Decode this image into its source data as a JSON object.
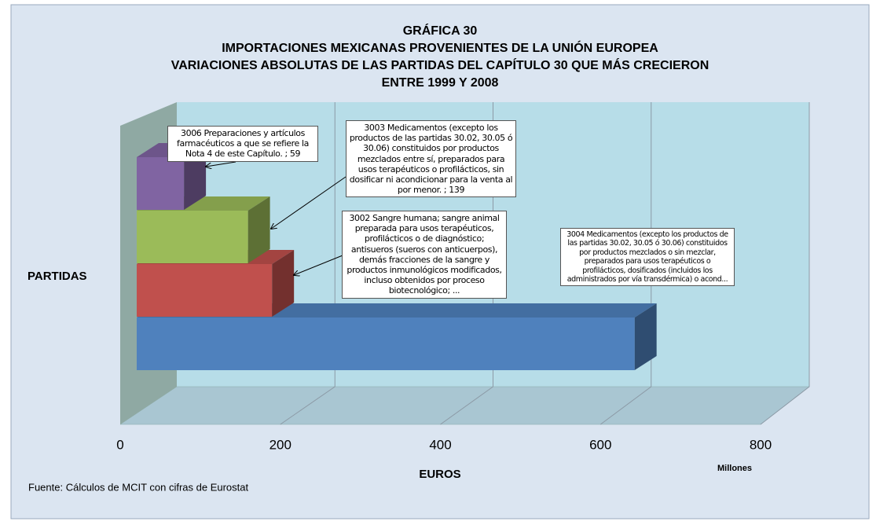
{
  "chart_data": {
    "type": "bar3d",
    "title": [
      "GRÁFICA 30",
      "IMPORTACIONES MEXICANAS PROVENIENTES DE LA UNIÓN EUROPEA",
      "VARIACIONES ABSOLUTAS DE LAS PARTIDAS DEL CAPÍTULO 30 QUE MÁS CRECIERON",
      "ENTRE 1999 Y 2008"
    ],
    "categories": [
      "3004 Medicamentos (excepto los productos de las partidas 30.02, 30.05 ó 30.06) constituidos por productos mezclados o sin mezclar, preparados para usos terapéuticos o profilácticos, dosificados (incluidos los administrados por vía transdérmica) o acond...",
      "3002 Sangre humana; sangre animal preparada para usos terapéuticos, profilácticos o de diagnóstico; antisueros (sueros con anticuerpos), demás fracciones de la sangre y productos inmunológicos modificados, incluso obtenidos por proceso biotecnológico; ...",
      "3003 Medicamentos (excepto los productos de las partidas 30.02, 30.05 ó 30.06) constituidos por productos mezclados entre sí, preparados para usos terapéuticos o profilácticos, sin dosificar ni acondicionar para la venta al por menor. ; 139",
      "3006 Preparaciones y artículos farmacéuticos a que se refiere la Nota 4 de este Capítulo. ; 59"
    ],
    "values": [
      622,
      169,
      139,
      59
    ],
    "colors": [
      "#4f81bd",
      "#c0504d",
      "#9bbb59",
      "#8064a2"
    ],
    "y_label": "PARTIDAS",
    "x_label": "EUROS",
    "x_unit": "Millones",
    "xlim": [
      0,
      800
    ],
    "xticks": [
      0,
      200,
      400,
      600,
      800
    ],
    "grid": true,
    "source": "Fuente: Cálculos de MCIT con cifras de Eurostat"
  }
}
